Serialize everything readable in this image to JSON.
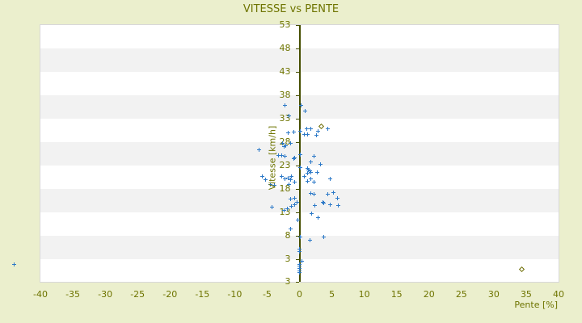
{
  "window": {
    "background": "#ebefcd"
  },
  "chart_data": {
    "type": "scatter",
    "title": "VITESSE vs PENTE",
    "xlabel": "Pente [%]",
    "ylabel": "Vitesse [km/h]",
    "xlim": [
      -40,
      40
    ],
    "ylim": [
      -1.8,
      53
    ],
    "x_ticks": [
      -40,
      -35,
      -30,
      -25,
      -20,
      -15,
      -10,
      -5,
      0,
      5,
      10,
      15,
      20,
      25,
      30,
      35,
      40
    ],
    "y_ticks": [
      53,
      48,
      43,
      38,
      33,
      28,
      23,
      18,
      13,
      8,
      3
    ],
    "y_axis_end_label": "3",
    "grid": "alternating-horizontal-bands",
    "legend": "none",
    "band_colors": [
      "#ffffff",
      "#f2f2f2"
    ],
    "axis_line_color": "#454e00",
    "label_color": "#6e7400",
    "title_color": "#6e7400",
    "series": [
      {
        "name": "vitesse-vs-pente-points",
        "marker": "plus",
        "color": "#2e7ac8",
        "points": [
          [
            -2.3,
            35.8
          ],
          [
            0.2,
            35.9
          ],
          [
            0.9,
            34.7
          ],
          [
            -1.6,
            33.6
          ],
          [
            1.1,
            30.9
          ],
          [
            1.7,
            30.8
          ],
          [
            2.9,
            30.4
          ],
          [
            4.4,
            30.9
          ],
          [
            0.1,
            30.3
          ],
          [
            2.6,
            29.4
          ],
          [
            -1.7,
            29.9
          ],
          [
            -0.9,
            30.1
          ],
          [
            0.7,
            29.6
          ],
          [
            1.3,
            29.6
          ],
          [
            -6.3,
            26.4
          ],
          [
            -2.6,
            27.7
          ],
          [
            -2.4,
            27.1
          ],
          [
            -2.1,
            27.3
          ],
          [
            -1.4,
            27.8
          ],
          [
            -3.3,
            25.1
          ],
          [
            -2.8,
            25.2
          ],
          [
            -2.2,
            24.9
          ],
          [
            -0.9,
            24.4
          ],
          [
            -0.7,
            24.7
          ],
          [
            0.1,
            25.4
          ],
          [
            2.2,
            24.9
          ],
          [
            1.8,
            23.7
          ],
          [
            3.2,
            23.3
          ],
          [
            1.3,
            22.4
          ],
          [
            1.4,
            22.1
          ],
          [
            1.6,
            21.8
          ],
          [
            1.3,
            21.4
          ],
          [
            1.7,
            21.6
          ],
          [
            2.8,
            21.6
          ],
          [
            0.1,
            22.5
          ],
          [
            -2.7,
            20.6
          ],
          [
            -2.2,
            20.1
          ],
          [
            -1.8,
            20.4
          ],
          [
            -1.4,
            19.9
          ],
          [
            -1.2,
            20.6
          ],
          [
            -0.8,
            19.4
          ],
          [
            -1.6,
            18.9
          ],
          [
            -5.8,
            20.6
          ],
          [
            -5.3,
            19.9
          ],
          [
            -4.5,
            19.0
          ],
          [
            -3.9,
            18.8
          ],
          [
            1.3,
            19.7
          ],
          [
            1.7,
            20.1
          ],
          [
            2.2,
            19.4
          ],
          [
            4.8,
            20.2
          ],
          [
            0.7,
            20.6
          ],
          [
            1.8,
            17.1
          ],
          [
            2.2,
            16.8
          ],
          [
            4.4,
            16.8
          ],
          [
            5.3,
            17.3
          ],
          [
            5.9,
            16.1
          ],
          [
            -1.4,
            15.9
          ],
          [
            -0.8,
            16.1
          ],
          [
            -0.4,
            15.2
          ],
          [
            -4.3,
            14.2
          ],
          [
            -2.4,
            13.5
          ],
          [
            -1.9,
            13.7
          ],
          [
            -1.2,
            14.3
          ],
          [
            -0.8,
            14.7
          ],
          [
            3.6,
            15.1
          ],
          [
            4.7,
            14.7
          ],
          [
            6.0,
            14.4
          ],
          [
            2.4,
            14.4
          ],
          [
            3.8,
            14.9
          ],
          [
            1.9,
            12.8
          ],
          [
            2.9,
            11.8
          ],
          [
            -0.2,
            11.3
          ],
          [
            -1.4,
            9.4
          ],
          [
            0.1,
            7.8
          ],
          [
            1.6,
            7.1
          ],
          [
            3.7,
            7.8
          ],
          [
            0.0,
            5.1
          ],
          [
            0.0,
            4.6
          ],
          [
            0.4,
            2.6
          ],
          [
            0.0,
            1.9
          ],
          [
            0.0,
            1.6
          ],
          [
            0.0,
            1.0
          ],
          [
            0.0,
            0.5
          ],
          [
            0.0,
            0.2
          ],
          [
            -44.0,
            1.8
          ]
        ]
      },
      {
        "name": "secondary-points",
        "marker": "diamond",
        "color": "#6b6b00",
        "points": [
          [
            3.4,
            31.3
          ],
          [
            34.3,
            0.9
          ]
        ]
      }
    ]
  }
}
